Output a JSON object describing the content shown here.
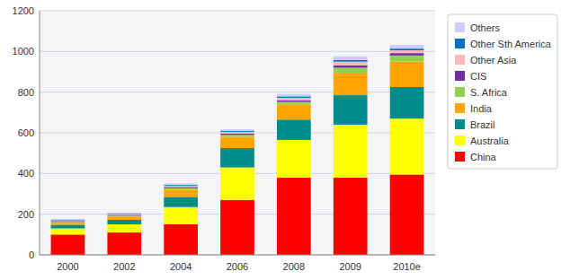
{
  "chart_data": {
    "type": "bar",
    "stacked": true,
    "categories": [
      "2000",
      "2002",
      "2004",
      "2006",
      "2008",
      "2009",
      "2010e"
    ],
    "series": [
      {
        "name": "China",
        "color": "#FF0000",
        "values": [
          100,
          110,
          150,
          270,
          380,
          380,
          395
        ]
      },
      {
        "name": "Australia",
        "color": "#FFFF00",
        "values": [
          30,
          40,
          85,
          160,
          185,
          260,
          275
        ]
      },
      {
        "name": "Brazil",
        "color": "#008B8B",
        "values": [
          18,
          22,
          50,
          95,
          100,
          145,
          155
        ]
      },
      {
        "name": "India",
        "color": "#FFA500",
        "values": [
          10,
          15,
          35,
          55,
          75,
          110,
          125
        ]
      },
      {
        "name": "S. Africa",
        "color": "#92D050",
        "values": [
          4,
          5,
          8,
          10,
          12,
          25,
          30
        ]
      },
      {
        "name": "CIS",
        "color": "#7030A0",
        "values": [
          4,
          4,
          6,
          7,
          8,
          12,
          12
        ]
      },
      {
        "name": "Other Asia",
        "color": "#FFB6C1",
        "values": [
          4,
          5,
          7,
          8,
          12,
          18,
          14
        ]
      },
      {
        "name": "Other Sth America",
        "color": "#0070C0",
        "values": [
          3,
          3,
          4,
          5,
          7,
          8,
          8
        ]
      },
      {
        "name": "Others",
        "color": "#CCCCFF",
        "values": [
          4,
          5,
          6,
          8,
          12,
          18,
          18
        ]
      }
    ],
    "ylim": [
      0,
      1200
    ],
    "yticks": [
      0,
      200,
      400,
      600,
      800,
      1000,
      1200
    ],
    "grid": true,
    "legend": "right"
  }
}
